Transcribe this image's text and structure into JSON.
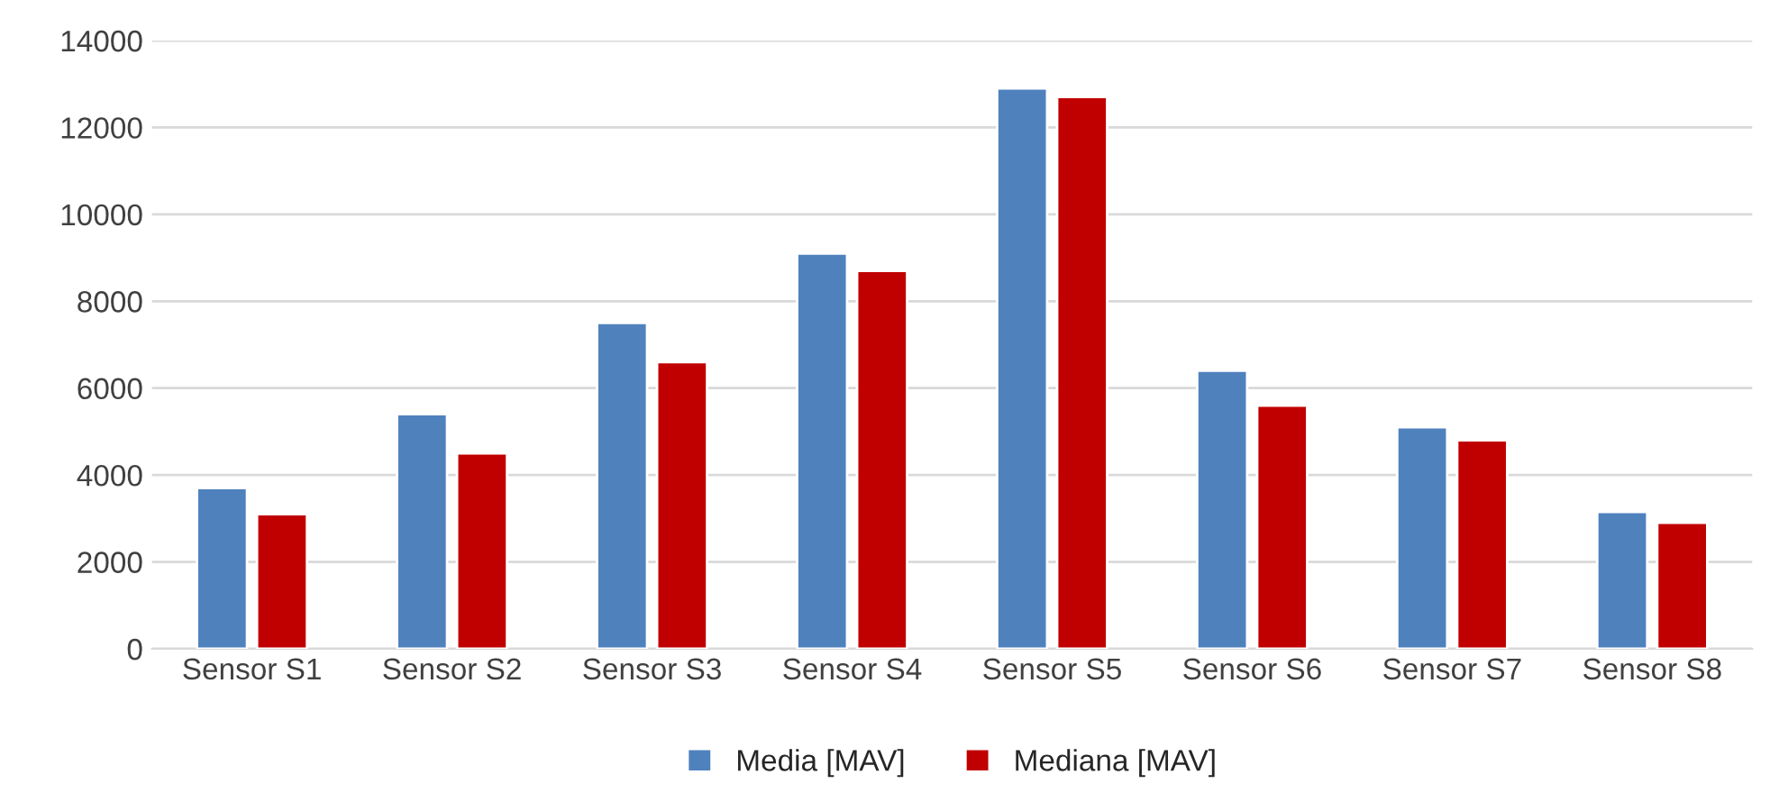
{
  "chart_data": {
    "type": "bar",
    "categories": [
      "Sensor S1",
      "Sensor S2",
      "Sensor S3",
      "Sensor S4",
      "Sensor S5",
      "Sensor S6",
      "Sensor S7",
      "Sensor S8"
    ],
    "series": [
      {
        "name": "Media [MAV]",
        "color": "#4f81bd",
        "values": [
          3700,
          5400,
          7500,
          9100,
          12900,
          6400,
          5100,
          3150
        ]
      },
      {
        "name": "Mediana [MAV]",
        "color": "#c00000",
        "values": [
          3100,
          4500,
          6600,
          8700,
          12700,
          5600,
          4800,
          2900
        ]
      }
    ],
    "ylim": [
      0,
      14000
    ],
    "yticks": [
      0,
      2000,
      4000,
      6000,
      8000,
      10000,
      12000,
      14000
    ],
    "grid": "y",
    "legend": "bottom"
  }
}
